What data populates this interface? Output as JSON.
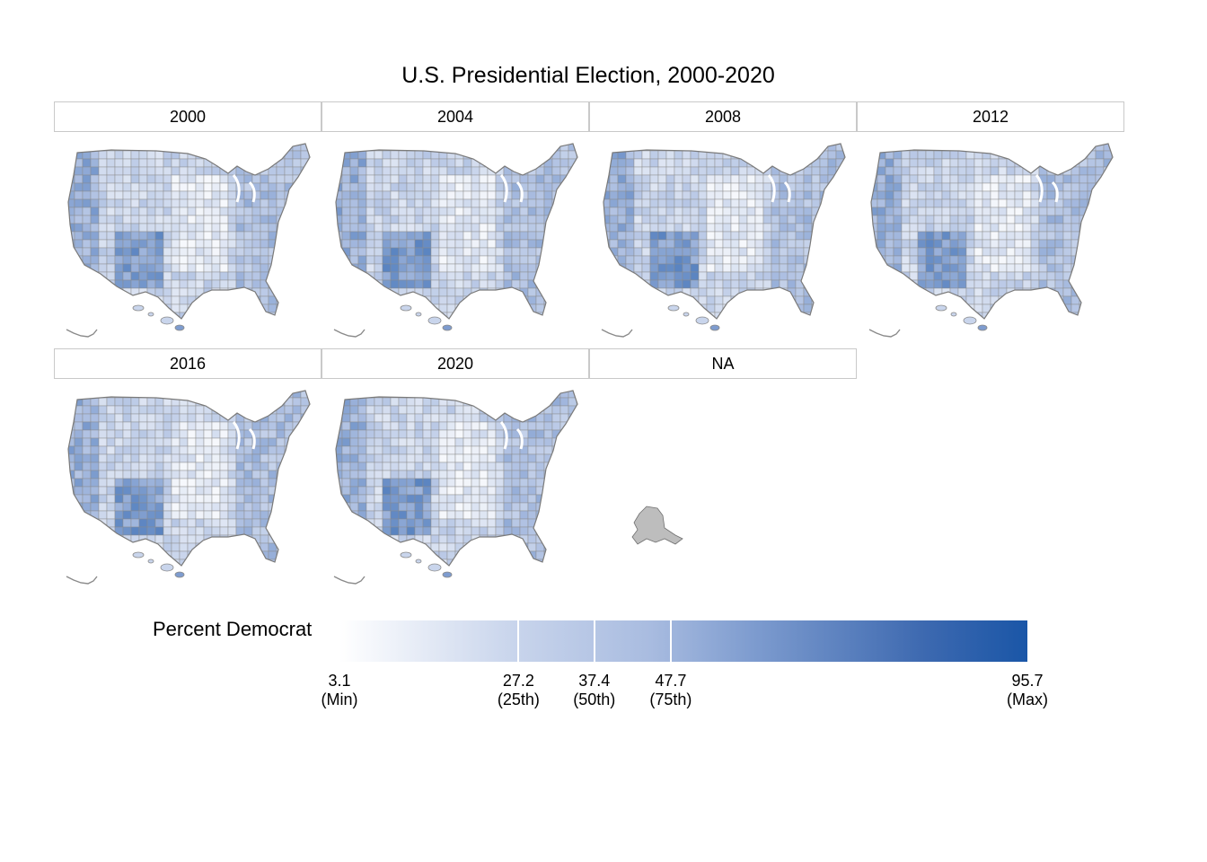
{
  "title": "U.S. Presidential Election, 2000-2020",
  "colors": {
    "low": "#ffffff",
    "q25": "#c9d5ec",
    "mid": "#a9bce0",
    "q75": "#7e9ccf",
    "high": "#1a56a7",
    "boundary": "#8a8a8a",
    "na_fill": "#bdbdbd"
  },
  "panels": [
    {
      "label": "2000",
      "region": "contiguous-us-hawaii"
    },
    {
      "label": "2004",
      "region": "contiguous-us-hawaii"
    },
    {
      "label": "2008",
      "region": "contiguous-us-hawaii"
    },
    {
      "label": "2012",
      "region": "contiguous-us-hawaii"
    },
    {
      "label": "2016",
      "region": "contiguous-us-hawaii"
    },
    {
      "label": "2020",
      "region": "contiguous-us-hawaii"
    },
    {
      "label": "NA",
      "region": "alaska"
    }
  ],
  "legend": {
    "title": "Percent Democrat",
    "min": 3.1,
    "max": 95.7,
    "ticks": [
      {
        "value": 3.1,
        "label": "3.1",
        "sub": "(Min)"
      },
      {
        "value": 27.2,
        "label": "27.2",
        "sub": "(25th)"
      },
      {
        "value": 37.4,
        "label": "37.4",
        "sub": "(50th)"
      },
      {
        "value": 47.7,
        "label": "47.7",
        "sub": "(75th)"
      },
      {
        "value": 95.7,
        "label": "95.7",
        "sub": "(Max)"
      }
    ]
  }
}
